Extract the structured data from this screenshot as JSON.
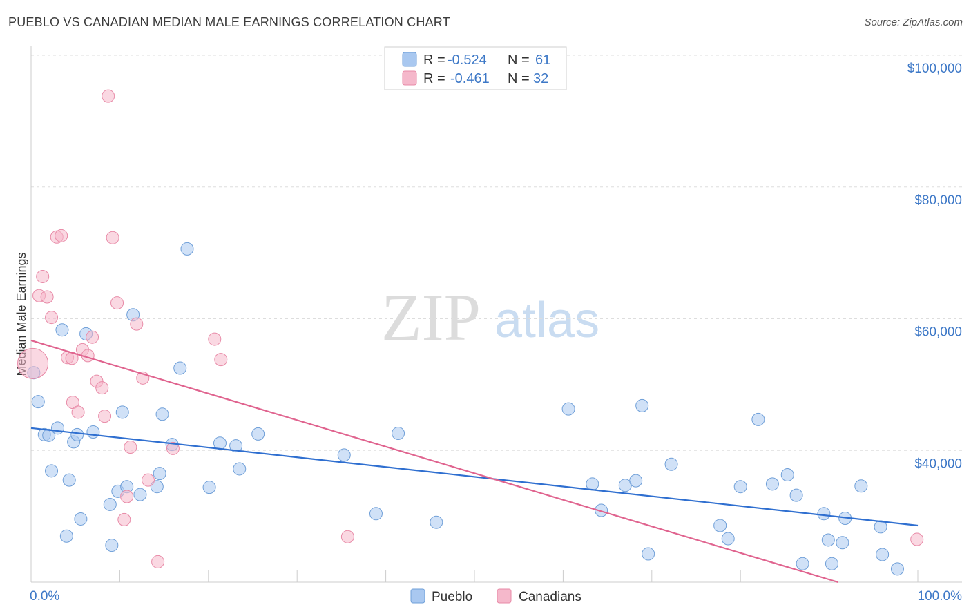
{
  "title": "PUEBLO VS CANADIAN MEDIAN MALE EARNINGS CORRELATION CHART",
  "source": "Source: ZipAtlas.com",
  "watermark": {
    "zip": "ZIP",
    "atlas": "atlas"
  },
  "legend_top": {
    "rows": [
      {
        "r_label": "R = ",
        "r_value": "-0.524",
        "n_label": "N = ",
        "n_value": "61",
        "color": "#a9c8f0"
      },
      {
        "r_label": "R = ",
        "r_value": "-0.461",
        "n_label": "N = ",
        "n_value": "32",
        "color": "#f5b8cb"
      }
    ]
  },
  "legend_bottom": [
    "Pueblo",
    "Canadians"
  ],
  "chart_data": {
    "type": "scatter",
    "title": "PUEBLO VS CANADIAN MEDIAN MALE EARNINGS CORRELATION CHART",
    "xlabel": "",
    "ylabel": "Median Male Earnings",
    "xlim": [
      0,
      100
    ],
    "ylim": [
      20000,
      100000
    ],
    "x_tick_labels": [
      "0.0%",
      "100.0%"
    ],
    "y_ticks": [
      40000,
      60000,
      80000,
      100000
    ],
    "y_tick_labels": [
      "$40,000",
      "$60,000",
      "$80,000",
      "$100,000"
    ],
    "grid": true,
    "legend_placement": "top-center",
    "series": [
      {
        "name": "Pueblo",
        "color": "#a9c8f0",
        "stroke": "#6f9fd8",
        "trend": {
          "x": [
            0,
            100
          ],
          "y": [
            43400,
            28600
          ],
          "color": "#2f6fd0"
        },
        "points": [
          [
            0.3,
            51800
          ],
          [
            0.8,
            47400
          ],
          [
            1.5,
            42400
          ],
          [
            2.0,
            42300
          ],
          [
            2.3,
            36900
          ],
          [
            3.0,
            43400
          ],
          [
            3.5,
            58300
          ],
          [
            4.0,
            27000
          ],
          [
            4.3,
            35500
          ],
          [
            4.8,
            41300
          ],
          [
            5.2,
            42400
          ],
          [
            5.6,
            29600
          ],
          [
            6.2,
            57700
          ],
          [
            7.0,
            42800
          ],
          [
            8.9,
            31800
          ],
          [
            9.1,
            25600
          ],
          [
            9.8,
            33800
          ],
          [
            10.3,
            45800
          ],
          [
            10.8,
            34500
          ],
          [
            11.5,
            60600
          ],
          [
            12.3,
            33300
          ],
          [
            14.2,
            34500
          ],
          [
            14.5,
            36500
          ],
          [
            14.8,
            45500
          ],
          [
            15.9,
            40900
          ],
          [
            16.8,
            52500
          ],
          [
            17.6,
            70600
          ],
          [
            20.1,
            34400
          ],
          [
            21.3,
            41100
          ],
          [
            23.1,
            40700
          ],
          [
            23.5,
            37200
          ],
          [
            25.6,
            42500
          ],
          [
            35.3,
            39300
          ],
          [
            38.9,
            30400
          ],
          [
            41.4,
            42600
          ],
          [
            45.7,
            29100
          ],
          [
            60.6,
            46300
          ],
          [
            63.3,
            34900
          ],
          [
            64.3,
            30900
          ],
          [
            67.0,
            34700
          ],
          [
            68.2,
            35400
          ],
          [
            68.9,
            46800
          ],
          [
            69.6,
            24300
          ],
          [
            72.2,
            37900
          ],
          [
            77.7,
            28600
          ],
          [
            78.6,
            26600
          ],
          [
            80.0,
            34500
          ],
          [
            82.0,
            44700
          ],
          [
            83.6,
            34900
          ],
          [
            85.3,
            36300
          ],
          [
            86.3,
            33200
          ],
          [
            87.0,
            22800
          ],
          [
            89.4,
            30400
          ],
          [
            89.9,
            26400
          ],
          [
            90.3,
            22800
          ],
          [
            91.5,
            26000
          ],
          [
            91.8,
            29700
          ],
          [
            93.6,
            34600
          ],
          [
            95.8,
            28400
          ],
          [
            96.0,
            24200
          ],
          [
            97.7,
            22000
          ]
        ]
      },
      {
        "name": "Canadians",
        "color": "#f5b8cb",
        "stroke": "#e88aa7",
        "trend": {
          "x": [
            0,
            91.0
          ],
          "y": [
            56700,
            20000
          ],
          "color": "#e0648f"
        },
        "points": [
          [
            0.2,
            53200
          ],
          [
            0.9,
            63500
          ],
          [
            1.3,
            66400
          ],
          [
            1.8,
            63300
          ],
          [
            2.3,
            60200
          ],
          [
            2.9,
            72400
          ],
          [
            3.4,
            72600
          ],
          [
            4.1,
            54100
          ],
          [
            4.6,
            54000
          ],
          [
            4.7,
            47300
          ],
          [
            5.3,
            45800
          ],
          [
            5.8,
            55300
          ],
          [
            6.4,
            54400
          ],
          [
            6.9,
            57200
          ],
          [
            7.4,
            50500
          ],
          [
            8.0,
            49500
          ],
          [
            8.3,
            45200
          ],
          [
            8.7,
            93800
          ],
          [
            9.2,
            72300
          ],
          [
            9.7,
            62400
          ],
          [
            10.5,
            29500
          ],
          [
            10.8,
            33000
          ],
          [
            11.2,
            40500
          ],
          [
            11.9,
            59200
          ],
          [
            12.6,
            51000
          ],
          [
            13.2,
            35500
          ],
          [
            14.3,
            23100
          ],
          [
            16.0,
            40300
          ],
          [
            20.7,
            56900
          ],
          [
            21.4,
            53800
          ],
          [
            35.7,
            26900
          ],
          [
            99.9,
            26500
          ]
        ]
      }
    ]
  }
}
